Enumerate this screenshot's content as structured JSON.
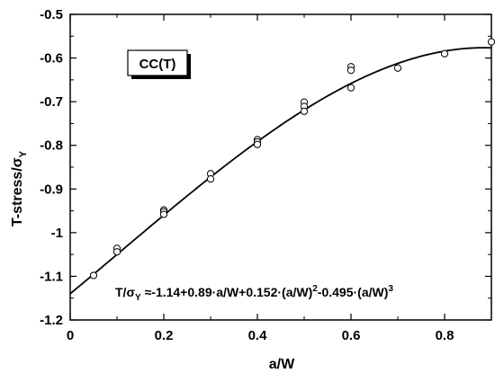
{
  "chart_data": {
    "type": "scatter",
    "xlabel": "a/W",
    "ylabel_main": "T-stress/σ",
    "ylabel_sub": "Y",
    "xlim": [
      0,
      0.9
    ],
    "ylim": [
      -1.2,
      -0.5
    ],
    "xticks": [
      0,
      0.2,
      0.4,
      0.6,
      0.8
    ],
    "xtick_labels": [
      "0",
      "0.2",
      "0.4",
      "0.6",
      "0.8"
    ],
    "yticks": [
      -1.2,
      -1.1,
      -1.0,
      -0.9,
      -0.8,
      -0.7,
      -0.6,
      -0.5
    ],
    "ytick_labels": [
      "-1.2",
      "-1.1",
      "-1",
      "-0.9",
      "-0.8",
      "-0.7",
      "-0.6",
      "-0.5"
    ],
    "grid": false,
    "specimen_label": "CC(T)",
    "fit_equation": {
      "lhs": "T/σ",
      "lhs_sub": "Y",
      "rel": " ≈-1.14+0.89·a/W+0.152·(a/W)",
      "sup1": "2",
      "mid": "-0.495·(a/W)",
      "sup2": "3"
    },
    "fit_coefficients": [
      -1.14,
      0.89,
      0.152,
      -0.495
    ],
    "points": [
      {
        "x": 0.05,
        "y": -1.098
      },
      {
        "x": 0.1,
        "y": -1.036
      },
      {
        "x": 0.1,
        "y": -1.044
      },
      {
        "x": 0.2,
        "y": -0.948
      },
      {
        "x": 0.2,
        "y": -0.952
      },
      {
        "x": 0.2,
        "y": -0.958
      },
      {
        "x": 0.3,
        "y": -0.865
      },
      {
        "x": 0.3,
        "y": -0.877
      },
      {
        "x": 0.4,
        "y": -0.787
      },
      {
        "x": 0.4,
        "y": -0.792
      },
      {
        "x": 0.4,
        "y": -0.798
      },
      {
        "x": 0.5,
        "y": -0.701
      },
      {
        "x": 0.5,
        "y": -0.711
      },
      {
        "x": 0.5,
        "y": -0.722
      },
      {
        "x": 0.6,
        "y": -0.62
      },
      {
        "x": 0.6,
        "y": -0.628
      },
      {
        "x": 0.6,
        "y": -0.668
      },
      {
        "x": 0.7,
        "y": -0.623
      },
      {
        "x": 0.8,
        "y": -0.59
      },
      {
        "x": 0.9,
        "y": -0.563
      }
    ]
  }
}
